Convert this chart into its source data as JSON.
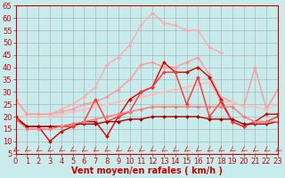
{
  "xlabel": "Vent moyen/en rafales ( km/h )",
  "xlim": [
    0,
    23
  ],
  "ylim": [
    5,
    65
  ],
  "yticks": [
    5,
    10,
    15,
    20,
    25,
    30,
    35,
    40,
    45,
    50,
    55,
    60,
    65
  ],
  "xticks": [
    0,
    1,
    2,
    3,
    4,
    5,
    6,
    7,
    8,
    9,
    10,
    11,
    12,
    13,
    14,
    15,
    16,
    17,
    18,
    19,
    20,
    21,
    22,
    23
  ],
  "background_color": "#c8ecec",
  "grid_color": "#aaaaaa",
  "lines": [
    {
      "x": [
        0,
        1,
        2,
        3,
        4,
        5,
        6,
        7,
        8,
        9,
        10,
        11,
        12,
        13,
        14,
        15,
        16,
        17,
        18,
        19,
        20,
        21,
        22,
        23
      ],
      "y": [
        27,
        21,
        21,
        21,
        23,
        25,
        28,
        32,
        41,
        44,
        49,
        57,
        62,
        58,
        57,
        55,
        55,
        48,
        46,
        null,
        null,
        null,
        23,
        31
      ],
      "color": "#ffaaaa",
      "lw": 1.0,
      "marker": "D",
      "ms": 2.0
    },
    {
      "x": [
        0,
        1,
        2,
        3,
        4,
        5,
        6,
        7,
        8,
        9,
        10,
        11,
        12,
        13,
        14,
        15,
        16,
        17,
        18,
        19,
        20,
        21,
        22,
        23
      ],
      "y": [
        27,
        21,
        21,
        21,
        22,
        23,
        25,
        26,
        28,
        31,
        35,
        41,
        42,
        40,
        40,
        42,
        44,
        37,
        28,
        26,
        24,
        40,
        23,
        31
      ],
      "color": "#ff9999",
      "lw": 1.0,
      "marker": "D",
      "ms": 2.0
    },
    {
      "x": [
        0,
        1,
        2,
        3,
        4,
        5,
        6,
        7,
        8,
        9,
        10,
        11,
        12,
        13,
        14,
        15,
        16,
        17,
        18,
        19,
        20,
        21,
        22,
        23
      ],
      "y": [
        20,
        20,
        20,
        20,
        21,
        22,
        23,
        24,
        25,
        26,
        27,
        28,
        29,
        30,
        31,
        32,
        33,
        34,
        26,
        26,
        24,
        24,
        23,
        25
      ],
      "color": "#ffbbbb",
      "lw": 1.0,
      "marker": "D",
      "ms": 2.0
    },
    {
      "x": [
        0,
        1,
        2,
        3,
        4,
        5,
        6,
        7,
        8,
        9,
        10,
        11,
        12,
        13,
        14,
        15,
        16,
        17,
        18,
        19,
        20,
        21,
        22,
        23
      ],
      "y": [
        20,
        16,
        16,
        10,
        14,
        16,
        18,
        18,
        12,
        20,
        27,
        30,
        32,
        42,
        38,
        38,
        40,
        36,
        27,
        18,
        16,
        18,
        21,
        21
      ],
      "color": "#dd0000",
      "lw": 1.0,
      "marker": "D",
      "ms": 2.0
    },
    {
      "x": [
        0,
        1,
        2,
        3,
        4,
        5,
        6,
        7,
        8,
        9,
        10,
        11,
        12,
        13,
        14,
        15,
        16,
        17,
        18,
        19,
        20,
        21,
        22,
        23
      ],
      "y": [
        19,
        16,
        16,
        16,
        16,
        16,
        18,
        27,
        18,
        20,
        22,
        30,
        32,
        38,
        38,
        25,
        36,
        20,
        26,
        18,
        16,
        18,
        18,
        20
      ],
      "color": "#ff3333",
      "lw": 1.0,
      "marker": "D",
      "ms": 2.0
    },
    {
      "x": [
        0,
        1,
        2,
        3,
        4,
        5,
        6,
        7,
        8,
        9,
        10,
        11,
        12,
        13,
        14,
        15,
        16,
        17,
        18,
        19,
        20,
        21,
        22,
        23
      ],
      "y": [
        19,
        16,
        16,
        16,
        16,
        17,
        17,
        17,
        18,
        18,
        19,
        19,
        20,
        20,
        20,
        20,
        20,
        19,
        19,
        19,
        17,
        17,
        17,
        18
      ],
      "color": "#aa0000",
      "lw": 1.0,
      "marker": "D",
      "ms": 2.0
    },
    {
      "x": [
        0,
        1,
        2,
        3,
        4,
        5,
        6,
        7,
        8,
        9,
        10,
        11,
        12,
        13,
        14,
        15,
        16,
        17,
        18,
        19,
        20,
        21,
        22,
        23
      ],
      "y": [
        19,
        15,
        15,
        15,
        16,
        17,
        18,
        19,
        20,
        21,
        22,
        23,
        24,
        24,
        24,
        24,
        24,
        24,
        24,
        24,
        20,
        18,
        18,
        18
      ],
      "color": "#ff7777",
      "lw": 1.0,
      "marker": "D",
      "ms": 2.0
    }
  ],
  "arrow_color": "#cc2222",
  "xlabel_color": "#cc0000",
  "xlabel_fontsize": 7,
  "tick_fontsize": 6,
  "tick_color": "#cc0000"
}
